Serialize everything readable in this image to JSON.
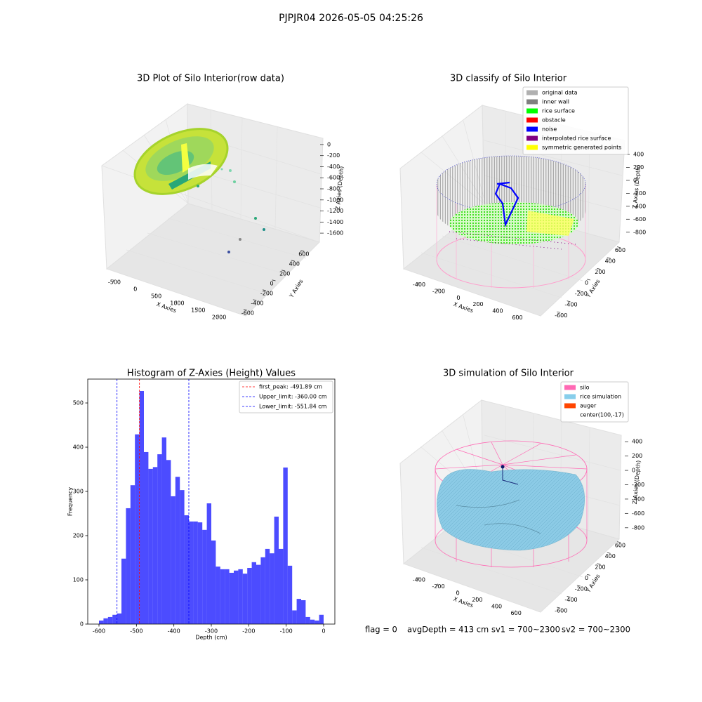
{
  "title": "PJPJR04 2026-05-05 04:25:26",
  "footer": [
    "flag = 0",
    "avgDepth = 413 cm",
    "sv1 = 700~2300",
    "sv2 = 700~2300"
  ],
  "chart_data": [
    {
      "type": "scatter3d",
      "title": "3D Plot of Silo Interior(row data)",
      "x_label": "X Axies",
      "y_label": "Y Axies",
      "z_label": "Z Axies (Depth)",
      "xlim": [
        -650,
        2300
      ],
      "xticks": [
        -500,
        0,
        500,
        1000,
        1500,
        2000
      ],
      "ylim": [
        -700,
        700
      ],
      "yticks": [
        -600,
        -400,
        -200,
        0,
        200,
        400,
        600
      ],
      "zlim": [
        -1700,
        100
      ],
      "zticks": [
        0,
        -200,
        -400,
        -600,
        -800,
        -1000,
        -1200,
        -1400,
        -1600
      ]
    },
    {
      "type": "scatter3d",
      "title": "3D classify of Silo Interior",
      "x_label": "X Axies",
      "y_label": "Y Axies",
      "z_label": "Z Axies (Depth)",
      "xlim": [
        -500,
        700
      ],
      "xticks": [
        -400,
        -200,
        0,
        200,
        400,
        600
      ],
      "ylim": [
        -700,
        700
      ],
      "yticks": [
        -600,
        -400,
        -200,
        0,
        200,
        400,
        600
      ],
      "zlim": [
        -900,
        400
      ],
      "zticks": [
        -800,
        -600,
        -400,
        -200,
        0,
        200,
        400
      ],
      "series": [
        {
          "name": "original data",
          "color": "#b0b0b0"
        },
        {
          "name": "inner wall",
          "color": "#808080"
        },
        {
          "name": "rice surface",
          "color": "#00ff00"
        },
        {
          "name": "obstacle",
          "color": "#ff0000"
        },
        {
          "name": "noise",
          "color": "#0000ff"
        },
        {
          "name": "interpolated rice surface",
          "color": "#800080"
        },
        {
          "name": "symmetric generated points",
          "color": "#ffff00"
        }
      ]
    },
    {
      "type": "histogram",
      "title": "Histogram of Z-Axies (Height) Values",
      "x_label": "Depth (cm)",
      "y_label": "Frequency",
      "color": "#0000ff",
      "bins": [
        -600,
        -588,
        -576,
        -564,
        -552,
        -540,
        -528,
        -516,
        -504,
        -492,
        -480,
        -468,
        -456,
        -444,
        -432,
        -420,
        -408,
        -396,
        -384,
        -372,
        -360,
        -348,
        -336,
        -324,
        -312,
        -300,
        -288,
        -276,
        -264,
        -252,
        -240,
        -228,
        -216,
        -204,
        -192,
        -180,
        -168,
        -156,
        -144,
        -132,
        -120,
        -108,
        -96,
        -84,
        -72,
        -60,
        -48,
        -36,
        -24,
        -12,
        0
      ],
      "values": [
        8,
        13,
        16,
        21,
        24,
        148,
        262,
        314,
        429,
        527,
        389,
        351,
        355,
        384,
        422,
        371,
        289,
        333,
        303,
        246,
        232,
        232,
        230,
        213,
        273,
        189,
        130,
        124,
        124,
        116,
        121,
        124,
        114,
        127,
        140,
        134,
        151,
        170,
        160,
        243,
        170,
        354,
        132,
        31,
        57,
        54,
        16,
        10,
        8,
        21
      ],
      "xlim": [
        -630,
        30
      ],
      "xticks": [
        -600,
        -500,
        -400,
        -300,
        -200,
        -100,
        0
      ],
      "ylim": [
        0,
        554
      ],
      "yticks": [
        0,
        100,
        200,
        300,
        400,
        500
      ],
      "lines": [
        {
          "name": "first_peak: -491.89 cm",
          "value": -491.89,
          "color": "#ff0000"
        },
        {
          "name": "Upper_limit: -360.00 cm",
          "value": -360.0,
          "color": "#0000ff"
        },
        {
          "name": "Lower_limit: -551.84 cm",
          "value": -551.84,
          "color": "#0000ff"
        }
      ]
    },
    {
      "type": "scatter3d",
      "title": "3D simulation of Silo Interior",
      "x_label": "X Axies",
      "y_label": "Y Axies",
      "z_label": "Z Axies (Depth)",
      "xlim": [
        -500,
        700
      ],
      "xticks": [
        -400,
        -200,
        0,
        200,
        400,
        600
      ],
      "ylim": [
        -700,
        700
      ],
      "yticks": [
        -600,
        -400,
        -200,
        0,
        200,
        400,
        600
      ],
      "zlim": [
        -900,
        500
      ],
      "zticks": [
        -800,
        -600,
        -400,
        -200,
        0,
        200,
        400
      ],
      "series": [
        {
          "name": "silo",
          "color": "#ff69b4"
        },
        {
          "name": "rice simulation",
          "color": "#87ceeb"
        },
        {
          "name": "auger",
          "color": "#ff4500"
        },
        {
          "name": "center(100,-17)"
        }
      ]
    }
  ]
}
